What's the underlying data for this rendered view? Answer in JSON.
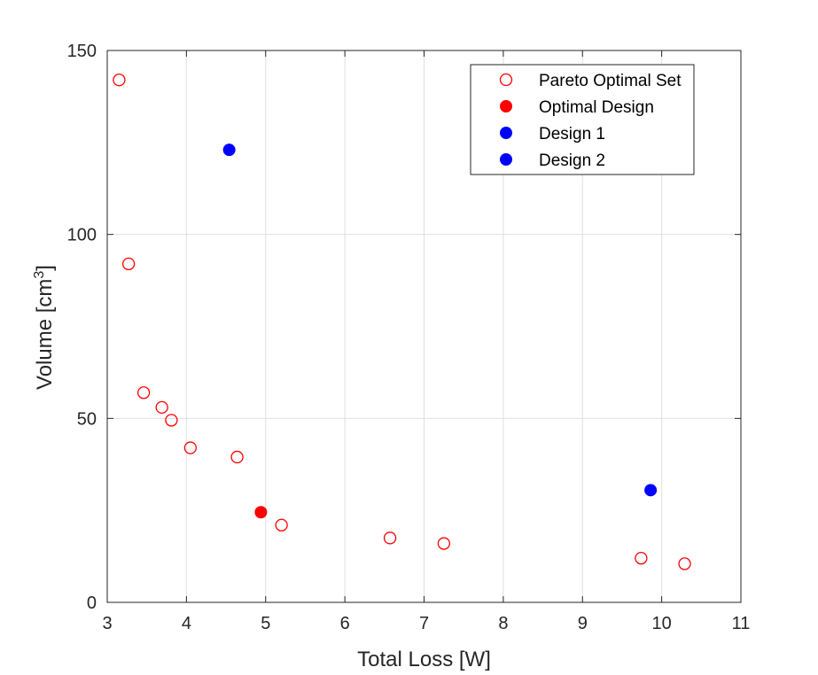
{
  "chart_data": {
    "type": "scatter",
    "xlabel": "Total Loss [W]",
    "ylabel": {
      "prefix": "Volume [cm",
      "superscript": "3",
      "suffix": "]"
    },
    "xlim": [
      3,
      11
    ],
    "ylim": [
      0,
      150
    ],
    "xticks": [
      "3",
      "4",
      "5",
      "6",
      "7",
      "8",
      "9",
      "10",
      "11"
    ],
    "yticks": [
      "0",
      "50",
      "100",
      "150"
    ],
    "grid": true,
    "legend_position": "top-right",
    "series": [
      {
        "name": "Pareto Optimal Set",
        "marker": "open-circle",
        "color": "#ff0000",
        "x": [
          3.15,
          3.27,
          3.46,
          3.69,
          3.81,
          4.05,
          4.64,
          5.2,
          6.57,
          7.25,
          9.74,
          10.29
        ],
        "y": [
          142,
          92,
          57,
          53,
          49.5,
          42,
          39.5,
          21,
          17.5,
          16,
          12,
          10.5
        ]
      },
      {
        "name": "Optimal Design",
        "marker": "filled-circle",
        "color": "#ff0000",
        "x": [
          4.94
        ],
        "y": [
          24.5
        ]
      },
      {
        "name": "Design 1",
        "marker": "filled-circle",
        "color": "#0000ff",
        "x": [
          4.54
        ],
        "y": [
          123
        ]
      },
      {
        "name": "Design 2",
        "marker": "filled-circle",
        "color": "#0000ff",
        "x": [
          9.86
        ],
        "y": [
          30.5
        ]
      }
    ]
  }
}
